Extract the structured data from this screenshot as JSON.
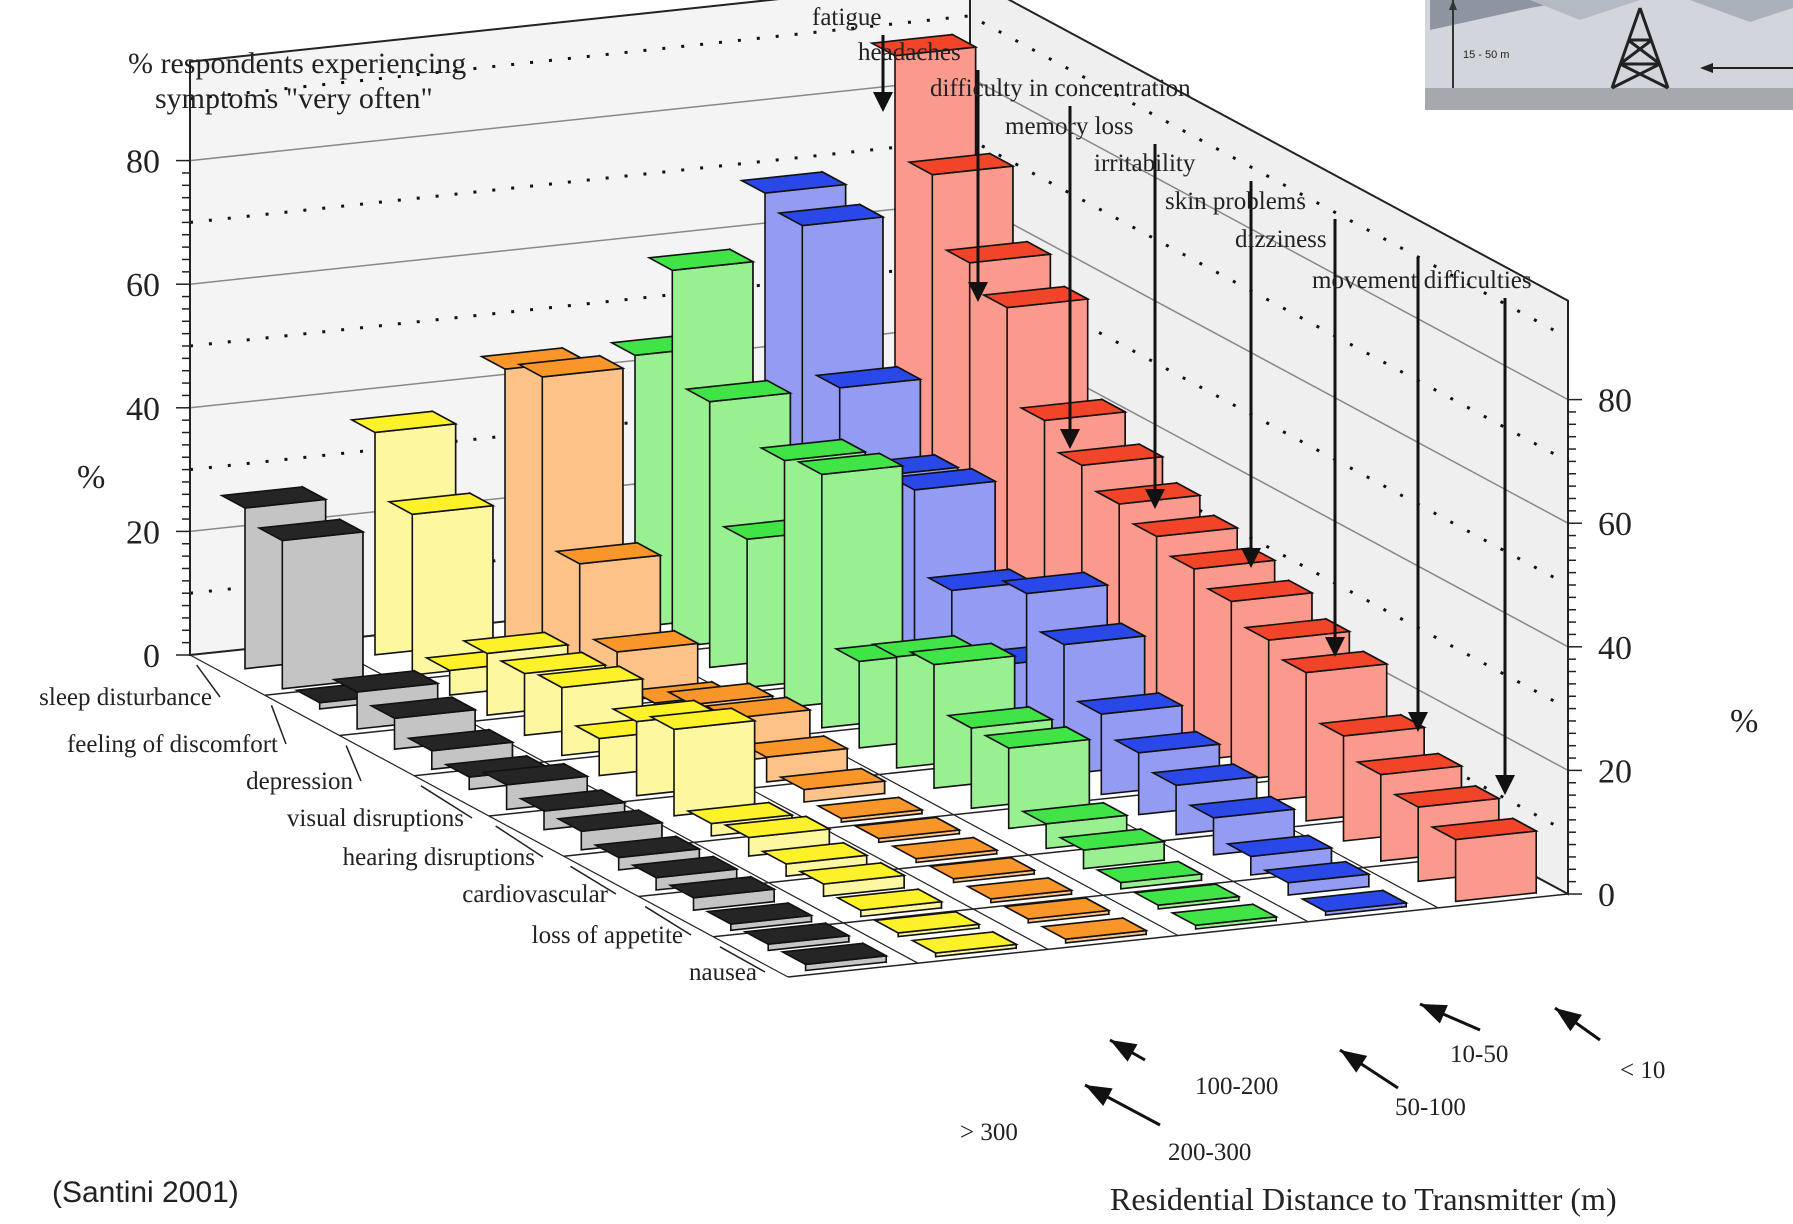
{
  "chart_data": {
    "type": "bar",
    "title": "% respondents  experiencing\nsymptoms  \"very often\"",
    "ylabel": "%",
    "xlabel": "Residential Distance to Transmitter (m)",
    "ylim": [
      0,
      80
    ],
    "yticks": [
      "0",
      "20",
      "40",
      "60",
      "80"
    ],
    "distance_categories": [
      "< 10",
      "10-50",
      "50-100",
      "100-200",
      "200-300",
      "> 300"
    ],
    "front_symptoms": [
      "sleep disturbance",
      "feeling of discomfort",
      "depression",
      "visual disruptions",
      "hearing disruptions",
      "cardiovascular",
      "loss of appetite",
      "nausea"
    ],
    "top_symptoms": [
      "fatigue",
      "headaches",
      "difficulty in concentration",
      "memory loss",
      "irritability",
      "skin problems",
      "dizziness",
      "movement difficulties"
    ],
    "colors": {
      "<10": "#f03a1e",
      "10-50": "#1e3ee6",
      "50-100": "#37e33c",
      "100-200": "#f8901e",
      "200-300": "#fdf01e",
      ">300": "#000000"
    },
    "series": [
      {
        "name": "< 10",
        "values": [
          88,
          72,
          61,
          57,
          42,
          38,
          35,
          33,
          31,
          29,
          26,
          24,
          17,
          14,
          12,
          10
        ]
      },
      {
        "name": "10-50",
        "values": [
          68,
          66,
          43,
          32,
          33,
          20,
          11,
          26,
          21,
          13,
          10,
          8,
          6,
          3,
          2,
          0
        ]
      },
      {
        "name": "50-100",
        "values": [
          44,
          61,
          43,
          24,
          40,
          41,
          14,
          18,
          20,
          13,
          13,
          4,
          3,
          1,
          0,
          0
        ]
      },
      {
        "name": "100-200",
        "values": [
          44,
          46,
          19,
          8,
          3,
          6,
          7,
          4,
          2,
          0,
          0,
          0,
          0,
          0,
          0,
          0
        ]
      },
      {
        "name": "200-300",
        "values": [
          36,
          26,
          4,
          10,
          10,
          11,
          6,
          12,
          14,
          2,
          3,
          2,
          2,
          1,
          0,
          0
        ]
      },
      {
        "name": "> 300",
        "values": [
          26,
          24,
          1,
          6,
          5,
          3,
          2,
          4,
          3,
          3,
          2,
          2,
          2,
          1,
          1,
          1
        ]
      }
    ]
  },
  "credit": "(Santini 2001)",
  "corner_image": {
    "label": "15 - 50 m"
  }
}
